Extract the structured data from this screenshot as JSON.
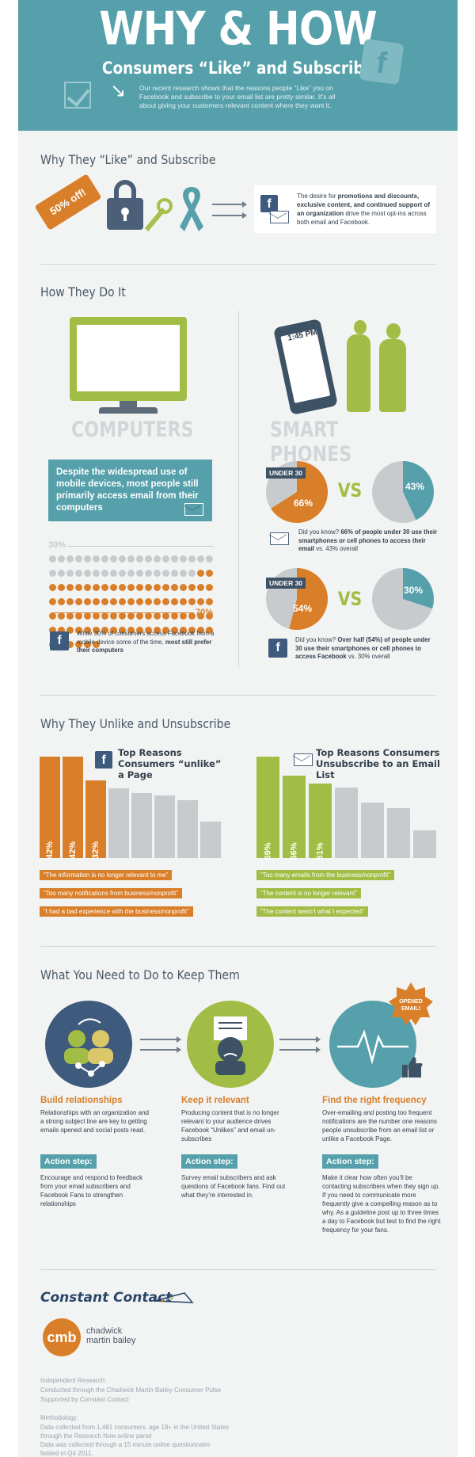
{
  "header": {
    "title": "WHY & HOW",
    "subtitle": "Consumers “Like” and Subscribe",
    "intro": "Our recent research shows that the reasons people “Like” you on Facebook and subscribe to your email list are pretty similar. It’s all about giving your customers relevant content where they want it."
  },
  "why": {
    "title": "Why They “Like” and Subscribe",
    "tag": "50% off!",
    "text_pre": "The desire for ",
    "text_bold": "promotions and discounts, exclusive content, and continued support of an organization",
    "text_post": " drive the most opt-ins across both email and Facebook."
  },
  "how": {
    "title": "How They Do It",
    "computers_label": "COMPUTERS",
    "phones_label": "SMART PHONES",
    "phone_time": "1:45 PM",
    "callout": "Despite the widespread use of mobile devices, most people still primarily access email from their computers",
    "pct_30": "30%",
    "pct_70": "70%",
    "computers_note_pre": "While 30% of consumers access Facebook from a mobile device some of the time, ",
    "computers_note_bold": "most still prefer their computers",
    "under30": "UNDER 30",
    "vs": "VS",
    "email_pie": {
      "under30": 66,
      "overall": 43,
      "under30_label": "66%",
      "overall_label": "43%"
    },
    "email_note_pre": "Did you know? ",
    "email_note_bold": "66% of people under 30 use their smartphones or cell phones to access their email",
    "email_note_post": " vs. 43% overall",
    "fb_pie": {
      "under30": 54,
      "overall": 30,
      "under30_label": "54%",
      "overall_label": "30%"
    },
    "fb_note_pre": "Did you know? ",
    "fb_note_bold": "Over half (54%) of people under 30 use their smartphones or cell phones to access Facebook",
    "fb_note_post": " vs. 30% overall"
  },
  "unlike": {
    "title": "Why They Unlike and Unsubscribe",
    "fb_heading": "Top Reasons Consumers “unlike” a Page",
    "email_heading": "Top Reasons Consumers Unsubscribe to an Email List",
    "fb_bars": [
      42,
      42,
      32,
      29,
      27,
      26,
      24,
      15
    ],
    "fb_bar_labels": [
      "42%",
      "42%",
      "32%"
    ],
    "email_bars": [
      69,
      56,
      51,
      48,
      38,
      34,
      19
    ],
    "email_bar_labels": [
      "69%",
      "56%",
      "51%"
    ],
    "fb_reasons": [
      "“The information is no longer relevant to me”",
      "“Too many notifications from business/nonprofit”",
      "“I had a bad experience with the business/nonprofit”"
    ],
    "email_reasons": [
      "“Too many emails from the business/nonprofit”",
      "“The content is no longer relevant”",
      "“The content wasn’t what I expected”"
    ]
  },
  "keep": {
    "title": "What You Need to Do to Keep Them",
    "badge": "OPENED EMAIL!",
    "columns": [
      {
        "heading": "Build relationships",
        "text": "Relationships with an organization and a strong subject line are key to getting emails opened and social posts read.",
        "action_label": "Action step:",
        "action": "Encourage and respond to feedback from your email subscribers and Facebook Fans to strengthen relationships"
      },
      {
        "heading": "Keep it relevant",
        "text": "Producing content that is no longer relevant to your audience drives Facebook “Unlikes” and email un-subscribes",
        "action_label": "Action step:",
        "action": "Survey email subscribers and ask questions of Facebook fans. Find out what they’re interested in."
      },
      {
        "heading": "Find the right frequency",
        "text": "Over-emailing and posting too frequent notifications are the number one reasons people unsubscribe from an email list or unlike a Facebook Page.",
        "action_label": "Action step:",
        "action": "Make it clear how often you’ll be contacting subscribers when they sign up. If you need to communicate more frequently give a compelling reason as to why. As a guideline post up to three times a day to Facebook but test to find the right frequency for your fans."
      }
    ]
  },
  "footer": {
    "cc_logo": "Constant Contact",
    "cmb_initials": "cmb",
    "cmb_name_1": "chadwick",
    "cmb_name_2": "martin bailey",
    "research_1": "Independent Research:",
    "research_2": "Conducted through the Chadwick Martin Bailey Consumer Pulse",
    "research_3": "Supported by Constant Contact",
    "method_1": "Methodology:",
    "method_2": "Data collected from 1,481 consumers, age 18+ in the United States through the Research Now online panel",
    "method_3": "Data was collected through a 15 minute online questionnaire fielded in Q4 2011."
  },
  "colors": {
    "teal": "#55a0ab",
    "orange": "#d97f2a",
    "green": "#a2bd45",
    "navy": "#3e5266",
    "gray": "#c8cbcd"
  }
}
